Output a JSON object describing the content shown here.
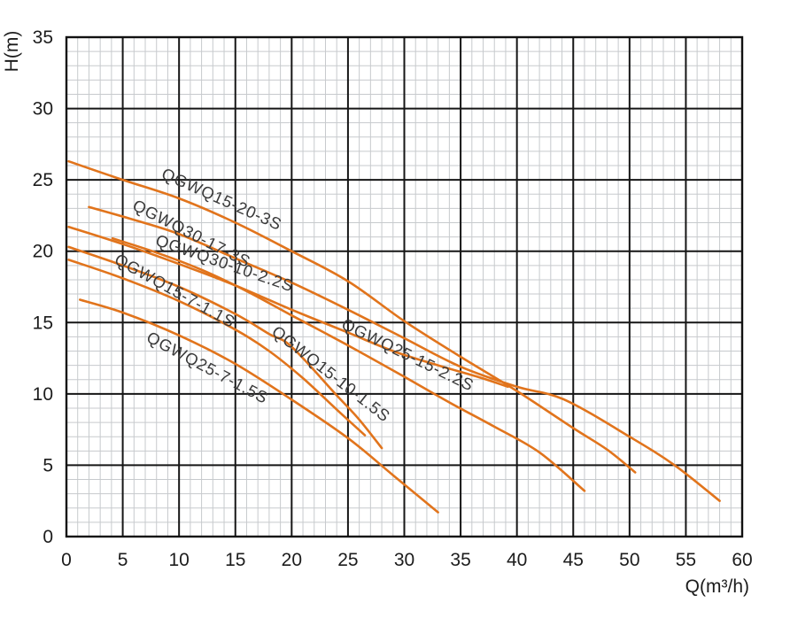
{
  "chart_data": {
    "type": "line",
    "title": "",
    "xlabel": "Q(m³/h)",
    "ylabel": "H(m)",
    "xlim": [
      0,
      60
    ],
    "ylim": [
      0,
      35
    ],
    "x_ticks": [
      0,
      5,
      10,
      15,
      20,
      25,
      30,
      35,
      40,
      45,
      50,
      55,
      60
    ],
    "y_ticks": [
      0,
      5,
      10,
      15,
      20,
      25,
      30,
      35
    ],
    "minor_grid_step": 1,
    "grid": "major-and-minor",
    "legend_position": "labels-along-curves",
    "colors": {
      "curve": "#e1741c",
      "grid_minor": "#c7cacd",
      "grid_major": "#161616",
      "border": "#111111",
      "label_text": "#3a3a3a",
      "tick_text": "#1c1c1c"
    },
    "series": [
      {
        "name": "QGWQ15-20-3S",
        "points": [
          [
            0.2,
            26.3
          ],
          [
            5,
            25.0
          ],
          [
            10,
            23.7
          ],
          [
            15,
            22.0
          ],
          [
            20,
            20.0
          ],
          [
            25,
            17.9
          ],
          [
            30,
            15.1
          ],
          [
            35,
            12.6
          ],
          [
            40,
            10.2
          ],
          [
            45,
            7.6
          ],
          [
            48,
            6.1
          ],
          [
            50.5,
            4.5
          ]
        ],
        "label": {
          "q": 13.6,
          "h": 23.3,
          "angle": 24
        }
      },
      {
        "name": "QGWQ30-17-3S",
        "points": [
          [
            2,
            23.1
          ],
          [
            6,
            22.2
          ],
          [
            10,
            21.2
          ],
          [
            15,
            19.5
          ],
          [
            20,
            17.8
          ],
          [
            25,
            15.9
          ],
          [
            30,
            13.9
          ],
          [
            35,
            11.9
          ],
          [
            40,
            10.5
          ],
          [
            44.2,
            9.6
          ],
          [
            50,
            7.0
          ],
          [
            54,
            5.0
          ],
          [
            58,
            2.5
          ]
        ],
        "label": {
          "q": 10.9,
          "h": 20.9,
          "angle": 27
        }
      },
      {
        "name": "QGWQ25-15-2.2S",
        "points": [
          [
            0.2,
            21.7
          ],
          [
            5,
            20.5
          ],
          [
            10,
            19.1
          ],
          [
            15,
            17.6
          ],
          [
            20,
            15.9
          ],
          [
            25,
            14.3
          ],
          [
            29,
            13.0
          ],
          [
            33,
            12.0
          ],
          [
            36.5,
            11.2
          ],
          [
            39.2,
            10.5
          ]
        ],
        "label": {
          "q": 30.1,
          "h": 12.4,
          "angle": 26
        }
      },
      {
        "name": "QGWQ30-10-2.2S",
        "points": [
          [
            4.1,
            20.9
          ],
          [
            8,
            19.9
          ],
          [
            12,
            18.7
          ],
          [
            16,
            17.2
          ],
          [
            20,
            15.5
          ],
          [
            25,
            13.4
          ],
          [
            30,
            11.2
          ],
          [
            34,
            9.4
          ],
          [
            38,
            7.7
          ],
          [
            42,
            5.9
          ],
          [
            46,
            3.2
          ]
        ],
        "label": {
          "q": 13.9,
          "h": 18.8,
          "angle": 19
        }
      },
      {
        "name": "QGWQ15-10-1.5S",
        "points": [
          [
            0.2,
            20.3
          ],
          [
            5,
            19.0
          ],
          [
            10,
            17.5
          ],
          [
            15,
            15.6
          ],
          [
            18,
            14.2
          ],
          [
            20,
            13.3
          ],
          [
            24,
            9.9
          ],
          [
            26,
            8.2
          ],
          [
            28,
            6.2
          ]
        ],
        "label": {
          "q": 23.2,
          "h": 11.1,
          "angle": 38
        }
      },
      {
        "name": "QGWQ15-7-1.1S",
        "points": [
          [
            0.2,
            19.4
          ],
          [
            5,
            18.1
          ],
          [
            10,
            16.5
          ],
          [
            15,
            14.5
          ],
          [
            18,
            13.0
          ],
          [
            21,
            11.1
          ],
          [
            24,
            8.9
          ],
          [
            26.5,
            7.1
          ]
        ],
        "label": {
          "q": 9.4,
          "h": 16.9,
          "angle": 29
        }
      },
      {
        "name": "QGWQ25-7-1.5S",
        "points": [
          [
            1.2,
            16.6
          ],
          [
            5,
            15.7
          ],
          [
            10,
            14.1
          ],
          [
            15,
            12.1
          ],
          [
            20,
            9.6
          ],
          [
            25,
            6.9
          ],
          [
            29,
            4.3
          ],
          [
            33,
            1.7
          ]
        ],
        "label": {
          "q": 12.3,
          "h": 11.5,
          "angle": 28
        }
      }
    ]
  }
}
